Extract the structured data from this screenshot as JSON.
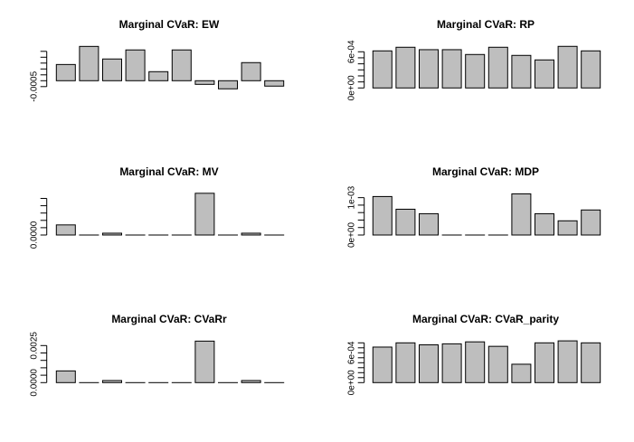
{
  "chart_data": [
    {
      "type": "bar",
      "title": "Marginal CVaR: EW",
      "values": [
        0.00138,
        0.00292,
        0.00185,
        0.00262,
        0.00077,
        0.00262,
        -0.00031,
        -0.00069,
        0.00154,
        -0.00046
      ],
      "yticks": [
        -0.0005,
        0,
        0.0005,
        0.001,
        0.0015,
        0.002,
        0.0025
      ],
      "ytick_labels": [
        {
          "value": -0.0005,
          "label": "-0.0005"
        }
      ],
      "bar_color": "#bebebe"
    },
    {
      "type": "bar",
      "title": "Marginal CVaR: RP",
      "values": [
        0.000615,
        0.000675,
        0.000635,
        0.000635,
        0.000555,
        0.000675,
        0.00054,
        0.000465,
        0.00069,
        0.000615
      ],
      "yticks": [
        0,
        0.0001,
        0.0002,
        0.0003,
        0.0004,
        0.0005,
        0.0006
      ],
      "ytick_labels": [
        {
          "value": 0,
          "label": "0e+00"
        },
        {
          "value": 0.0006,
          "label": "6e-04"
        }
      ],
      "bar_color": "#bebebe"
    },
    {
      "type": "bar",
      "title": "Marginal CVaR: MV",
      "values": [
        0.00069,
        0,
        0.000125,
        0,
        0,
        0,
        0.00285,
        0,
        0.000125,
        0
      ],
      "yticks": [
        0,
        0.0005,
        0.001,
        0.0015,
        0.002,
        0.0025
      ],
      "ytick_labels": [
        {
          "value": 0,
          "label": "0.0000"
        }
      ],
      "bar_color": "#bebebe"
    },
    {
      "type": "bar",
      "title": "Marginal CVaR: MDP",
      "values": [
        0.00103,
        0.00069,
        0.00057,
        0,
        0,
        0,
        0.0011,
        0.00057,
        0.00038,
        0.00067
      ],
      "yticks": [
        0,
        0.0002,
        0.0004,
        0.0006,
        0.0008,
        0.001
      ],
      "ytick_labels": [
        {
          "value": 0,
          "label": "0e+00"
        },
        {
          "value": 0.001,
          "label": "1e-03"
        }
      ],
      "bar_color": "#bebebe"
    },
    {
      "type": "bar",
      "title": "Marginal CVaR: CVaRr",
      "values": [
        0.00079,
        0,
        0.00014,
        0,
        0,
        0,
        0.0028,
        0,
        0.00014,
        0
      ],
      "yticks": [
        0,
        0.0005,
        0.001,
        0.0015,
        0.002,
        0.0025
      ],
      "ytick_labels": [
        {
          "value": 0,
          "label": "0.0000"
        },
        {
          "value": 0.0025,
          "label": "0.0025"
        }
      ],
      "bar_color": "#bebebe"
    },
    {
      "type": "bar",
      "title": "Marginal CVaR: CVaR_parity",
      "values": [
        0.000715,
        0.0008,
        0.00076,
        0.00078,
        0.00082,
        0.00073,
        0.00037,
        0.0008,
        0.00084,
        0.0008
      ],
      "yticks": [
        0,
        0.0001,
        0.0002,
        0.0003,
        0.0004,
        0.0005,
        0.0006,
        0.0007,
        0.0008
      ],
      "ytick_labels": [
        {
          "value": 0,
          "label": "0e+00"
        },
        {
          "value": 0.0006,
          "label": "6e-04"
        }
      ],
      "bar_color": "#bebebe"
    }
  ]
}
